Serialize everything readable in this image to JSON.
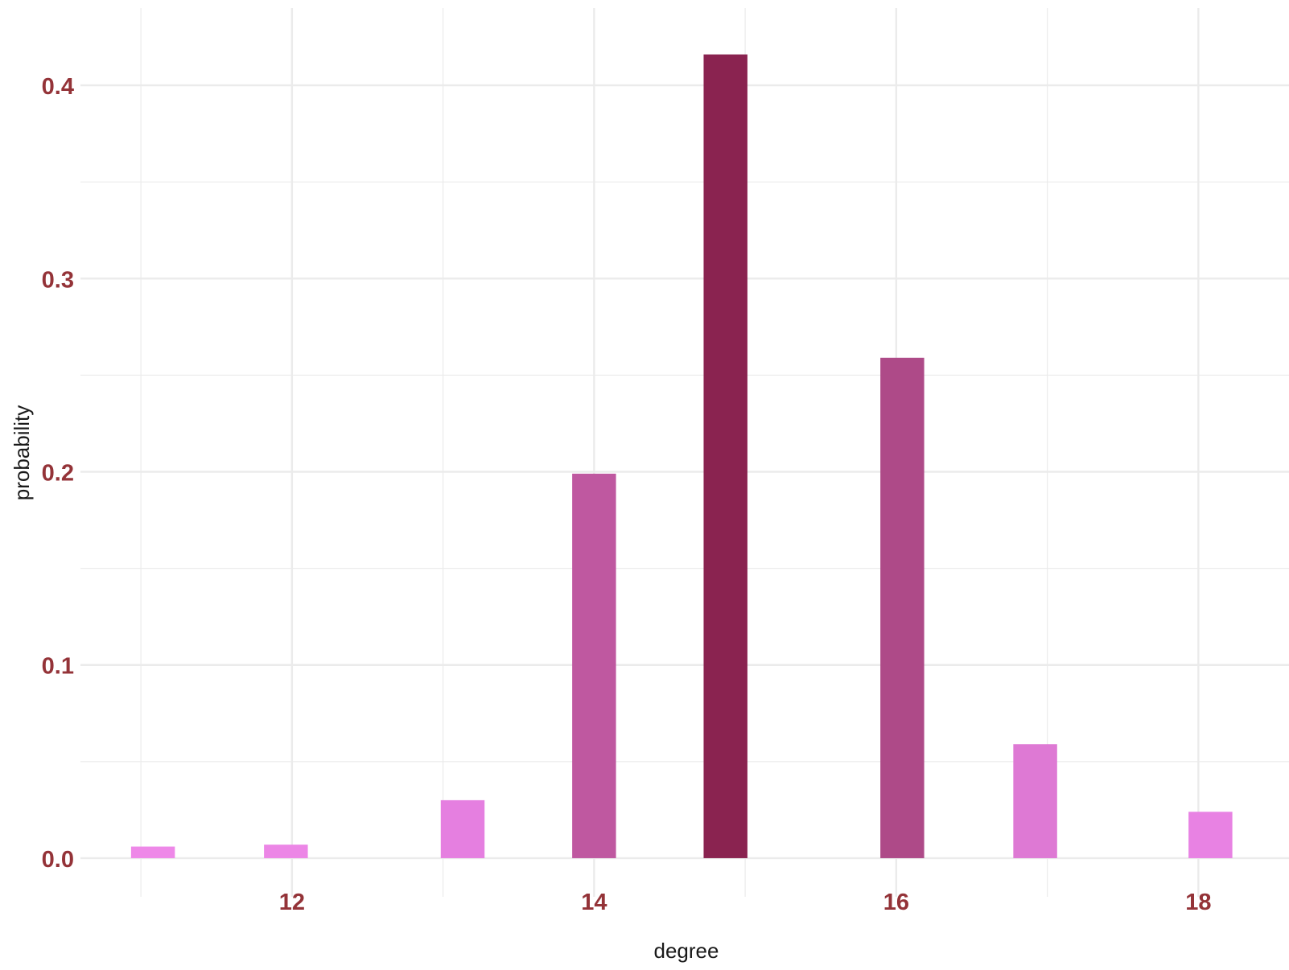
{
  "chart_data": {
    "type": "bar",
    "xlabel": "degree",
    "ylabel": "probability",
    "xlim": [
      10.6,
      18.6
    ],
    "ylim": [
      -0.02,
      0.44
    ],
    "x_ticks": [
      12,
      14,
      16,
      18
    ],
    "x_tick_labels": [
      "12",
      "14",
      "16",
      "18"
    ],
    "y_ticks": [
      0.0,
      0.1,
      0.2,
      0.3,
      0.4
    ],
    "y_tick_labels": [
      "0.0",
      "0.1",
      "0.2",
      "0.3",
      "0.4"
    ],
    "grid": true,
    "tick_label_color": "#943338",
    "grid_color": "#ebebeb",
    "bars": [
      {
        "x": 11.08,
        "value": 0.006,
        "color": "#ee88e8"
      },
      {
        "x": 11.96,
        "value": 0.007,
        "color": "#ec86e6"
      },
      {
        "x": 13.13,
        "value": 0.03,
        "color": "#e57fe0"
      },
      {
        "x": 14.0,
        "value": 0.199,
        "color": "#bf58a0"
      },
      {
        "x": 14.87,
        "value": 0.416,
        "color": "#8a2350"
      },
      {
        "x": 16.04,
        "value": 0.259,
        "color": "#ae4a88"
      },
      {
        "x": 16.92,
        "value": 0.059,
        "color": "#de79d4"
      },
      {
        "x": 18.08,
        "value": 0.024,
        "color": "#e882e3"
      }
    ]
  }
}
